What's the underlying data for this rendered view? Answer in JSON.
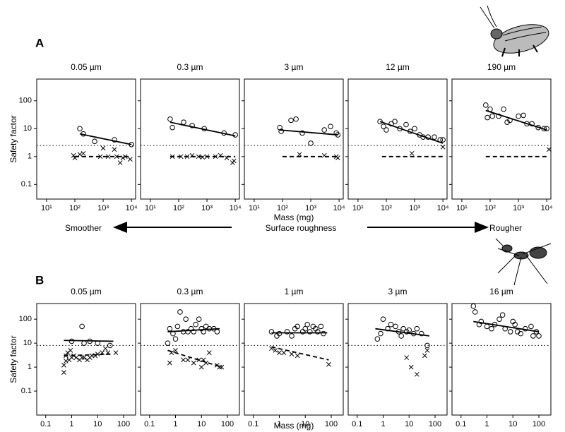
{
  "figure": {
    "rows": [
      {
        "letter": "A",
        "ylabel": "Safety factor",
        "xlabel": "Mass (mg)"
      },
      {
        "letter": "B",
        "ylabel": "Safety factor",
        "xlabel": "Mass (mg)"
      }
    ],
    "roughness_axis": {
      "left": "Smoother",
      "center": "Surface roughness",
      "right": "Rougher"
    }
  },
  "chart_data": [
    {
      "type": "scatter",
      "title": "0.05 µm",
      "log_x": true,
      "log_y": true,
      "show_ytick_labels": true,
      "xlim": [
        4.5,
        14000
      ],
      "ylim": [
        0.03,
        600
      ],
      "xticks": [
        {
          "value": 10,
          "label": "10¹"
        },
        {
          "value": 100,
          "label": "10²"
        },
        {
          "value": 1000,
          "label": "10³"
        },
        {
          "value": 10000,
          "label": "10⁴"
        }
      ],
      "yticks": [
        0.1,
        1,
        10,
        100
      ],
      "threshold": 2.5,
      "series": [
        {
          "marker": "circle",
          "color": "#000",
          "x": [
            150,
            200,
            500,
            2500,
            10000
          ],
          "values": [
            10,
            6.5,
            3.5,
            4,
            2.7
          ]
        },
        {
          "marker": "cross",
          "color": "#000",
          "x": [
            90,
            100,
            150,
            200,
            800,
            1000,
            1500,
            2500,
            3000,
            4000,
            5000,
            6000,
            9000
          ],
          "values": [
            1.1,
            0.9,
            1.2,
            1.3,
            1,
            2,
            1,
            1.8,
            1,
            0.6,
            0.9,
            1,
            0.8
          ]
        },
        {
          "line": "solid",
          "color": "#000",
          "x": [
            150,
            10000
          ],
          "values": [
            6.5,
            2.7
          ]
        },
        {
          "line": "dashed",
          "color": "#000",
          "x": [
            100,
            8000
          ],
          "values": [
            1,
            1
          ]
        }
      ]
    },
    {
      "type": "scatter",
      "title": "0.3 µm",
      "log_x": true,
      "log_y": true,
      "show_ytick_labels": false,
      "xlim": [
        4.5,
        14000
      ],
      "ylim": [
        0.03,
        600
      ],
      "xticks": [
        {
          "value": 10,
          "label": "10¹"
        },
        {
          "value": 100,
          "label": "10²"
        },
        {
          "value": 1000,
          "label": "10³"
        },
        {
          "value": 10000,
          "label": "10⁴"
        }
      ],
      "yticks": [
        0.1,
        1,
        10,
        100
      ],
      "threshold": 2.5,
      "series": [
        {
          "marker": "circle",
          "color": "#000",
          "x": [
            50,
            60,
            150,
            300,
            800,
            4000,
            10000
          ],
          "values": [
            22,
            11,
            17,
            13,
            10,
            7,
            6
          ]
        },
        {
          "marker": "cross",
          "color": "#000",
          "x": [
            60,
            120,
            200,
            300,
            500,
            700,
            1000,
            2000,
            3000,
            5000,
            8000,
            9000
          ],
          "values": [
            1,
            1,
            1,
            1.1,
            1,
            0.95,
            1,
            1,
            1.1,
            0.9,
            0.6,
            0.7
          ]
        },
        {
          "line": "solid",
          "color": "#000",
          "x": [
            50,
            10000
          ],
          "values": [
            17,
            5.5
          ]
        },
        {
          "line": "dashed",
          "color": "#000",
          "x": [
            50,
            10000
          ],
          "values": [
            1,
            1
          ]
        }
      ]
    },
    {
      "type": "scatter",
      "title": "3 µm",
      "log_x": true,
      "log_y": true,
      "show_ytick_labels": false,
      "xlim": [
        4.5,
        14000
      ],
      "ylim": [
        0.03,
        600
      ],
      "xticks": [
        {
          "value": 10,
          "label": "10¹"
        },
        {
          "value": 100,
          "label": "10²"
        },
        {
          "value": 1000,
          "label": "10³"
        },
        {
          "value": 10000,
          "label": "10⁴"
        }
      ],
      "yticks": [
        0.1,
        1,
        10,
        100
      ],
      "threshold": 2.5,
      "series": [
        {
          "marker": "circle",
          "color": "#000",
          "x": [
            80,
            90,
            200,
            300,
            500,
            1000,
            3000,
            5000,
            8000,
            9000
          ],
          "values": [
            11,
            8,
            20,
            22,
            7,
            3,
            9,
            12,
            7,
            6
          ]
        },
        {
          "marker": "cross",
          "color": "#000",
          "x": [
            400,
            3000,
            8000,
            9000
          ],
          "values": [
            1.2,
            1.1,
            1,
            0.9
          ]
        },
        {
          "line": "solid",
          "color": "#000",
          "x": [
            80,
            9000
          ],
          "values": [
            9,
            6
          ]
        },
        {
          "line": "dashed",
          "color": "#000",
          "x": [
            100,
            9000
          ],
          "values": [
            1,
            1
          ]
        }
      ]
    },
    {
      "type": "scatter",
      "title": "12 µm",
      "log_x": true,
      "log_y": true,
      "show_ytick_labels": false,
      "xlim": [
        4.5,
        14000
      ],
      "ylim": [
        0.03,
        600
      ],
      "xticks": [
        {
          "value": 10,
          "label": "10¹"
        },
        {
          "value": 100,
          "label": "10²"
        },
        {
          "value": 1000,
          "label": "10³"
        },
        {
          "value": 10000,
          "label": "10⁴"
        }
      ],
      "yticks": [
        0.1,
        1,
        10,
        100
      ],
      "threshold": 2.5,
      "series": [
        {
          "marker": "circle",
          "color": "#000",
          "x": [
            60,
            80,
            100,
            150,
            200,
            300,
            500,
            700,
            1000,
            1500,
            2000,
            3000,
            5000,
            8000,
            10000
          ],
          "values": [
            18,
            12,
            9,
            15,
            18,
            10,
            14,
            8,
            10,
            6,
            5,
            5,
            5,
            4,
            4
          ]
        },
        {
          "marker": "cross",
          "color": "#000",
          "x": [
            800,
            10000
          ],
          "values": [
            1.3,
            2.2
          ]
        },
        {
          "line": "solid",
          "color": "#000",
          "x": [
            60,
            10000
          ],
          "values": [
            18,
            3
          ]
        },
        {
          "line": "dashed",
          "color": "#000",
          "x": [
            70,
            10000
          ],
          "values": [
            1,
            1
          ]
        }
      ]
    },
    {
      "type": "scatter",
      "title": "190 µm",
      "log_x": true,
      "log_y": true,
      "show_ytick_labels": false,
      "xlim": [
        4.5,
        14000
      ],
      "ylim": [
        0.03,
        600
      ],
      "xticks": [
        {
          "value": 10,
          "label": "10¹"
        },
        {
          "value": 100,
          "label": "10²"
        },
        {
          "value": 1000,
          "label": "10³"
        },
        {
          "value": 10000,
          "label": "10⁴"
        }
      ],
      "yticks": [
        0.1,
        1,
        10,
        100
      ],
      "threshold": 2.5,
      "series": [
        {
          "marker": "circle",
          "color": "#000",
          "x": [
            70,
            80,
            100,
            120,
            200,
            300,
            400,
            500,
            1000,
            1500,
            2000,
            3000,
            5000,
            8000,
            10000
          ],
          "values": [
            70,
            25,
            50,
            28,
            28,
            50,
            17,
            20,
            28,
            30,
            15,
            15,
            11,
            10,
            10
          ]
        },
        {
          "marker": "cross",
          "color": "#000",
          "x": [
            12000
          ],
          "values": [
            1.8
          ]
        },
        {
          "line": "solid",
          "color": "#000",
          "x": [
            70,
            10000
          ],
          "values": [
            45,
            9
          ]
        },
        {
          "line": "dashed",
          "color": "#000",
          "x": [
            70,
            10000
          ],
          "values": [
            1,
            1
          ]
        }
      ]
    },
    {
      "type": "scatter",
      "title": "0.05 µm",
      "log_x": true,
      "log_y": true,
      "show_ytick_labels": true,
      "xlim": [
        0.045,
        290
      ],
      "ylim": [
        0.01,
        450
      ],
      "xticks": [
        0.1,
        1,
        10,
        100
      ],
      "yticks": [
        0.1,
        1,
        10,
        100
      ],
      "threshold": 8,
      "series": [
        {
          "marker": "circle",
          "color": "#000",
          "x": [
            1,
            2.5,
            3,
            5,
            10,
            30
          ],
          "values": [
            12,
            50,
            10,
            12,
            10,
            8
          ]
        },
        {
          "marker": "cross",
          "color": "#000",
          "x": [
            0.5,
            0.5,
            0.6,
            0.6,
            0.7,
            0.8,
            0.9,
            1,
            1.2,
            1.5,
            2,
            2.5,
            3,
            4,
            5,
            6,
            8,
            10,
            15,
            20,
            25,
            50
          ],
          "values": [
            0.6,
            1.2,
            1.8,
            3,
            4,
            2,
            5,
            2.5,
            3,
            2.5,
            2,
            2.5,
            2.5,
            2,
            2.5,
            3,
            3,
            3.5,
            4,
            6,
            4,
            4
          ]
        },
        {
          "line": "solid",
          "color": "#000",
          "x": [
            0.5,
            40
          ],
          "values": [
            13,
            12
          ]
        },
        {
          "line": "dashed",
          "color": "#000",
          "x": [
            0.5,
            40
          ],
          "values": [
            3,
            3.5
          ]
        }
      ]
    },
    {
      "type": "scatter",
      "title": "0.3 µm",
      "log_x": true,
      "log_y": true,
      "show_ytick_labels": false,
      "xlim": [
        0.045,
        290
      ],
      "ylim": [
        0.01,
        450
      ],
      "xticks": [
        0.1,
        1,
        10,
        100
      ],
      "yticks": [
        0.1,
        1,
        10,
        100
      ],
      "threshold": 8,
      "series": [
        {
          "marker": "circle",
          "color": "#000",
          "x": [
            0.5,
            0.6,
            0.8,
            1,
            1.2,
            1.5,
            2,
            2.5,
            3,
            4,
            5,
            6,
            8,
            10,
            12,
            15,
            20,
            30,
            40
          ],
          "values": [
            10,
            40,
            25,
            15,
            50,
            200,
            30,
            100,
            30,
            40,
            30,
            60,
            100,
            40,
            30,
            50,
            40,
            40,
            30
          ]
        },
        {
          "marker": "cross",
          "color": "#000",
          "x": [
            0.6,
            0.7,
            1,
            2,
            3,
            5,
            8,
            10,
            12,
            15,
            20,
            40,
            50,
            60
          ],
          "values": [
            1.5,
            4,
            5,
            2,
            2,
            1.5,
            2,
            1,
            2,
            1.5,
            4,
            1.2,
            1,
            1
          ]
        },
        {
          "line": "solid",
          "color": "#000",
          "x": [
            0.5,
            50
          ],
          "values": [
            30,
            40
          ]
        },
        {
          "line": "dashed",
          "color": "#000",
          "x": [
            0.5,
            60
          ],
          "values": [
            5,
            1
          ]
        }
      ]
    },
    {
      "type": "scatter",
      "title": "1 µm",
      "log_x": true,
      "log_y": true,
      "show_ytick_labels": false,
      "xlim": [
        0.045,
        290
      ],
      "ylim": [
        0.01,
        450
      ],
      "xticks": [
        0.1,
        1,
        10,
        100
      ],
      "yticks": [
        0.1,
        1,
        10,
        100
      ],
      "threshold": 8,
      "series": [
        {
          "marker": "circle",
          "color": "#000",
          "x": [
            0.5,
            0.8,
            1,
            2,
            3,
            4,
            5,
            8,
            10,
            12,
            15,
            20,
            25,
            30,
            40,
            50
          ],
          "values": [
            30,
            20,
            25,
            30,
            20,
            40,
            50,
            30,
            40,
            60,
            30,
            50,
            40,
            30,
            50,
            25
          ]
        },
        {
          "marker": "cross",
          "color": "#000",
          "x": [
            0.5,
            0.7,
            1,
            1.5,
            3,
            5,
            80
          ],
          "values": [
            6,
            5,
            4,
            4,
            3.5,
            3,
            1.3
          ]
        },
        {
          "line": "solid",
          "color": "#000",
          "x": [
            0.5,
            70
          ],
          "values": [
            27,
            27
          ]
        },
        {
          "line": "dashed",
          "color": "#000",
          "x": [
            0.5,
            80
          ],
          "values": [
            7,
            2
          ]
        }
      ]
    },
    {
      "type": "scatter",
      "title": "3 µm",
      "log_x": true,
      "log_y": true,
      "show_ytick_labels": false,
      "xlim": [
        0.045,
        290
      ],
      "ylim": [
        0.01,
        450
      ],
      "xticks": [
        0.1,
        1,
        10,
        100
      ],
      "yticks": [
        0.1,
        1,
        10,
        100
      ],
      "threshold": 8,
      "series": [
        {
          "marker": "circle",
          "color": "#000",
          "x": [
            0.6,
            0.8,
            1,
            1.5,
            2,
            3,
            4,
            5,
            6,
            8,
            10,
            15,
            20,
            30,
            50
          ],
          "values": [
            15,
            25,
            100,
            40,
            60,
            50,
            30,
            20,
            40,
            30,
            35,
            25,
            40,
            25,
            8
          ]
        },
        {
          "marker": "cross",
          "color": "#000",
          "x": [
            8,
            12,
            20,
            40,
            50
          ],
          "values": [
            2.5,
            1,
            0.5,
            3,
            5
          ]
        },
        {
          "line": "solid",
          "color": "#000",
          "x": [
            0.5,
            60
          ],
          "values": [
            40,
            20
          ]
        }
      ]
    },
    {
      "type": "scatter",
      "title": "16 µm",
      "log_x": true,
      "log_y": true,
      "show_ytick_labels": false,
      "xlim": [
        0.045,
        290
      ],
      "ylim": [
        0.01,
        450
      ],
      "xticks": [
        0.1,
        1,
        10,
        100
      ],
      "yticks": [
        0.1,
        1,
        10,
        100
      ],
      "threshold": 8,
      "series": [
        {
          "marker": "circle",
          "color": "#000",
          "x": [
            0.3,
            0.35,
            0.5,
            0.6,
            1,
            1.5,
            2,
            3,
            4,
            5,
            8,
            10,
            12,
            15,
            20,
            30,
            50,
            60,
            80,
            100
          ],
          "values": [
            350,
            200,
            60,
            80,
            50,
            40,
            60,
            100,
            150,
            40,
            30,
            80,
            60,
            30,
            25,
            40,
            50,
            20,
            30,
            20
          ]
        },
        {
          "line": "solid",
          "color": "#000",
          "x": [
            0.3,
            100
          ],
          "values": [
            80,
            30
          ]
        }
      ]
    }
  ]
}
